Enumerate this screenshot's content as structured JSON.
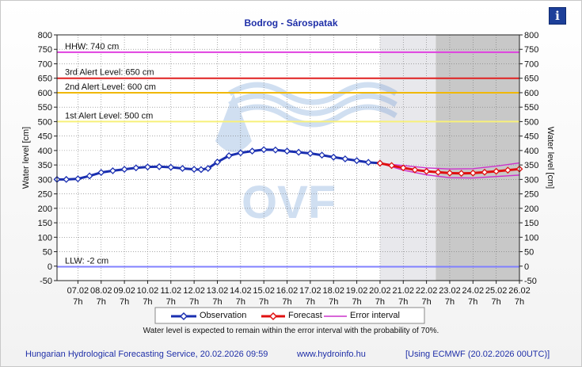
{
  "header": {
    "title": "Bodrog - Sárospatak",
    "info_icon": "info-icon",
    "info_glyph": "i"
  },
  "chart_data": {
    "type": "line",
    "title": "Bodrog - Sárospatak",
    "ylabel_left": "Water level [cm]",
    "ylabel_right": "Water level [cm]",
    "ylim": [
      -50,
      800
    ],
    "yticks": [
      -50,
      0,
      50,
      100,
      150,
      200,
      250,
      300,
      350,
      400,
      450,
      500,
      550,
      600,
      650,
      700,
      750,
      800
    ],
    "xlim_days": [
      6.1,
      26.0
    ],
    "xticks": [
      {
        "date": "07.02",
        "time": "7h",
        "day": 7
      },
      {
        "date": "08.02",
        "time": "7h",
        "day": 8
      },
      {
        "date": "09.02",
        "time": "7h",
        "day": 9
      },
      {
        "date": "10.02",
        "time": "7h",
        "day": 10
      },
      {
        "date": "11.02",
        "time": "7h",
        "day": 11
      },
      {
        "date": "12.02",
        "time": "7h",
        "day": 12
      },
      {
        "date": "13.02",
        "time": "7h",
        "day": 13
      },
      {
        "date": "14.02",
        "time": "7h",
        "day": 14
      },
      {
        "date": "15.02",
        "time": "7h",
        "day": 15
      },
      {
        "date": "16.02",
        "time": "7h",
        "day": 16
      },
      {
        "date": "17.02",
        "time": "7h",
        "day": 17
      },
      {
        "date": "18.02",
        "time": "7h",
        "day": 18
      },
      {
        "date": "19.02",
        "time": "7h",
        "day": 19
      },
      {
        "date": "20.02",
        "time": "7h",
        "day": 20
      },
      {
        "date": "21.02",
        "time": "7h",
        "day": 21
      },
      {
        "date": "22.02",
        "time": "7h",
        "day": 22
      },
      {
        "date": "23.02",
        "time": "7h",
        "day": 23
      },
      {
        "date": "24.02",
        "time": "7h",
        "day": 24
      },
      {
        "date": "25.02",
        "time": "7h",
        "day": 25
      },
      {
        "date": "26.02",
        "time": "7h",
        "day": 26
      }
    ],
    "forecast_region_start_day": 20.0,
    "ecmwf_region_start_day": 22.4,
    "thresholds": [
      {
        "label": "HHW: 740 cm",
        "value": 740,
        "color": "#e040e0"
      },
      {
        "label": "3rd Alert Level: 650 cm",
        "value": 650,
        "color": "#e02020"
      },
      {
        "label": "2nd Alert Level: 600 cm",
        "value": 600,
        "color": "#f0b800"
      },
      {
        "label": "1st Alert Level: 500 cm",
        "value": 500,
        "color": "#f7f07a"
      },
      {
        "label": "LLW: -2 cm",
        "value": -2,
        "color": "#8080ff"
      }
    ],
    "series": [
      {
        "name": "Observation",
        "color": "#1a2fb0",
        "points": [
          [
            6.1,
            300
          ],
          [
            6.5,
            300
          ],
          [
            7.0,
            302
          ],
          [
            7.5,
            312
          ],
          [
            8.0,
            324
          ],
          [
            8.5,
            330
          ],
          [
            9.0,
            335
          ],
          [
            9.5,
            340
          ],
          [
            10.0,
            343
          ],
          [
            10.5,
            344
          ],
          [
            11.0,
            342
          ],
          [
            11.5,
            338
          ],
          [
            12.0,
            335
          ],
          [
            12.3,
            334
          ],
          [
            12.6,
            338
          ],
          [
            13.0,
            360
          ],
          [
            13.5,
            382
          ],
          [
            14.0,
            392
          ],
          [
            14.5,
            398
          ],
          [
            15.0,
            403
          ],
          [
            15.5,
            402
          ],
          [
            16.0,
            398
          ],
          [
            16.5,
            394
          ],
          [
            17.0,
            390
          ],
          [
            17.5,
            384
          ],
          [
            18.0,
            377
          ],
          [
            18.5,
            371
          ],
          [
            19.0,
            365
          ],
          [
            19.5,
            359
          ],
          [
            20.0,
            356
          ]
        ]
      },
      {
        "name": "Forecast",
        "color": "#e01010",
        "points": [
          [
            20.0,
            356
          ],
          [
            20.5,
            348
          ],
          [
            21.0,
            340
          ],
          [
            21.5,
            333
          ],
          [
            22.0,
            328
          ],
          [
            22.5,
            325
          ],
          [
            23.0,
            322
          ],
          [
            23.5,
            321
          ],
          [
            24.0,
            322
          ],
          [
            24.5,
            325
          ],
          [
            25.0,
            328
          ],
          [
            25.5,
            332
          ],
          [
            26.0,
            336
          ]
        ]
      },
      {
        "name": "Error interval",
        "color": "#cc33cc",
        "upper": [
          [
            20.0,
            356
          ],
          [
            21.0,
            348
          ],
          [
            22.0,
            340
          ],
          [
            23.0,
            336
          ],
          [
            24.0,
            337
          ],
          [
            25.0,
            346
          ],
          [
            26.0,
            357
          ]
        ],
        "lower": [
          [
            20.0,
            356
          ],
          [
            21.0,
            332
          ],
          [
            22.0,
            316
          ],
          [
            23.0,
            306
          ],
          [
            24.0,
            305
          ],
          [
            25.0,
            310
          ],
          [
            26.0,
            315
          ]
        ]
      }
    ],
    "legend_position": "bottom",
    "grid": true
  },
  "legend": {
    "observation": "Observation",
    "forecast": "Forecast",
    "error": "Error interval"
  },
  "watermark": {
    "text": "OVF"
  },
  "note": "Water level is expected to remain within the error interval with the probability of 70%.",
  "footer": {
    "left": "Hungarian Hydrological Forecasting Service, 20.02.2026 09:59",
    "mid": "www.hydroinfo.hu",
    "right": "[Using ECMWF (20.02.2026  00UTC)]"
  }
}
